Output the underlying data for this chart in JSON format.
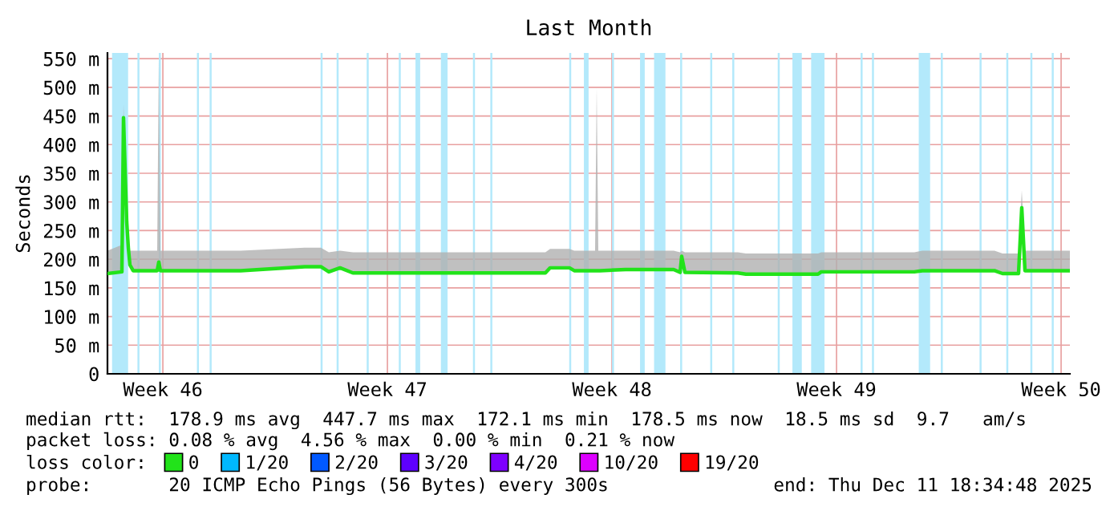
{
  "chart_data": {
    "type": "line",
    "title": "Last Month",
    "ylabel": "Seconds",
    "x": [
      "2025-11-11T18:34",
      "2025-11-12T05:22",
      "2025-11-12T06:34",
      "2025-11-12T08:58",
      "2025-11-12T10:10",
      "2025-11-12T11:22",
      "2025-11-12T13:46",
      "2025-11-13T07:46",
      "2025-11-13T08:58",
      "2025-11-13T10:10",
      "2025-11-15T22:10",
      "2025-11-17T22:10",
      "2025-11-18T10:10",
      "2025-11-18T16:10",
      "2025-11-19T00:34",
      "2025-11-19T10:10",
      "2025-11-25T10:10",
      "2025-11-25T13:46",
      "2025-11-26T04:10",
      "2025-11-26T07:46",
      "2025-11-26T23:22",
      "2025-11-27T00:34",
      "2025-11-27T01:46",
      "2025-11-27T02:58",
      "2025-11-27T22:10",
      "2025-11-29T10:10",
      "2025-11-29T14:58",
      "2025-11-29T16:10",
      "2025-11-29T18:34",
      "2025-12-01T10:10",
      "2025-12-01T16:10",
      "2025-12-03T22:10",
      "2025-12-04T00:34",
      "2025-12-06T22:10",
      "2025-12-07T04:10",
      "2025-12-09T10:10",
      "2025-12-09T16:10",
      "2025-12-10T04:10",
      "2025-12-10T06:34",
      "2025-12-10T08:58",
      "2025-12-11T18:34"
    ],
    "series": [
      {
        "name": "0",
        "color": "#22e31a",
        "values": [
          175,
          178,
          447,
          265,
          220,
          190,
          180,
          180,
          195,
          180,
          180,
          187,
          187,
          178,
          185,
          176,
          176,
          185,
          185,
          180,
          180,
          180,
          180,
          180,
          182,
          182,
          177,
          205,
          177,
          176,
          174,
          174,
          178,
          178,
          180,
          180,
          175,
          175,
          290,
          180,
          180
        ],
        "lower": [
          175,
          178,
          447,
          265,
          220,
          190,
          180,
          180,
          195,
          180,
          180,
          187,
          187,
          178,
          185,
          176,
          176,
          185,
          185,
          180,
          180,
          180,
          180,
          180,
          182,
          182,
          177,
          205,
          177,
          176,
          174,
          174,
          178,
          178,
          180,
          180,
          175,
          175,
          290,
          180,
          180
        ],
        "upper": [
          215,
          225,
          470,
          280,
          235,
          215,
          215,
          215,
          550,
          215,
          215,
          220,
          220,
          212,
          215,
          212,
          212,
          218,
          218,
          215,
          215,
          500,
          215,
          215,
          215,
          215,
          212,
          215,
          212,
          212,
          210,
          210,
          212,
          212,
          215,
          215,
          210,
          210,
          320,
          215,
          215
        ]
      },
      {
        "name": "1/20",
        "color": "#00b8ff",
        "values": [
          null,
          null,
          null,
          null,
          null,
          null,
          null,
          null,
          null,
          null,
          null,
          null,
          null,
          null,
          null,
          null,
          null,
          null,
          null,
          null,
          null,
          null,
          null,
          null,
          null,
          null,
          null,
          null,
          null,
          null,
          null,
          null,
          null,
          null,
          null,
          null,
          null,
          null,
          null,
          null,
          null
        ]
      },
      {
        "name": "2/20",
        "color": "#0059ff",
        "values": [
          null,
          null,
          null,
          null,
          null,
          null,
          null,
          null,
          null,
          null,
          null,
          null,
          null,
          null,
          null,
          null,
          null,
          null,
          null,
          null,
          null,
          null,
          null,
          null,
          null,
          null,
          null,
          null,
          null,
          null,
          null,
          null,
          null,
          null,
          null,
          null,
          null,
          null,
          null,
          null,
          null
        ]
      },
      {
        "name": "3/20",
        "color": "#5e00ff",
        "values": [
          null,
          null,
          null,
          null,
          null,
          null,
          null,
          null,
          null,
          null,
          null,
          null,
          null,
          null,
          null,
          null,
          null,
          null,
          null,
          null,
          null,
          null,
          null,
          null,
          null,
          null,
          null,
          null,
          null,
          null,
          null,
          null,
          null,
          null,
          null,
          null,
          null,
          null,
          null,
          null,
          null
        ]
      },
      {
        "name": "4/20",
        "color": "#7e00ff",
        "values": [
          null,
          null,
          null,
          null,
          null,
          null,
          null,
          null,
          null,
          null,
          null,
          null,
          null,
          null,
          null,
          null,
          null,
          null,
          null,
          null,
          null,
          null,
          null,
          null,
          null,
          null,
          null,
          null,
          null,
          null,
          null,
          null,
          null,
          null,
          null,
          null,
          null,
          null,
          null,
          null,
          null
        ]
      },
      {
        "name": "10/20",
        "color": "#dd00ff",
        "values": [
          null,
          null,
          null,
          null,
          null,
          null,
          null,
          null,
          null,
          null,
          null,
          null,
          null,
          null,
          null,
          null,
          null,
          null,
          null,
          null,
          null,
          null,
          null,
          null,
          null,
          null,
          null,
          null,
          null,
          null,
          null,
          null,
          null,
          null,
          null,
          null,
          null,
          null,
          null,
          null,
          null
        ]
      },
      {
        "name": "19/20",
        "color": "#ff0000",
        "values": [
          null,
          null,
          null,
          null,
          null,
          null,
          null,
          null,
          null,
          null,
          null,
          null,
          null,
          null,
          null,
          null,
          null,
          null,
          null,
          null,
          null,
          null,
          null,
          null,
          null,
          null,
          null,
          null,
          null,
          null,
          null,
          null,
          null,
          null,
          null,
          null,
          null,
          null,
          null,
          null,
          null
        ]
      }
    ],
    "xlim": [
      "2025-11-11T18:34",
      "2025-12-11T18:34"
    ],
    "xticks": [
      {
        "value": "2025-11-13T12:00",
        "label": "Week 46"
      },
      {
        "value": "2025-11-20T12:00",
        "label": "Week 47"
      },
      {
        "value": "2025-11-27T12:00",
        "label": "Week 48"
      },
      {
        "value": "2025-12-04T12:00",
        "label": "Week 49"
      },
      {
        "value": "2025-12-11T12:00",
        "label": "Week 50"
      }
    ],
    "ylim": [
      0,
      560
    ],
    "yticks": [
      0,
      {
        "value": 50,
        "label": "50 m"
      },
      {
        "value": 100,
        "label": "100 m"
      },
      {
        "value": 150,
        "label": "150 m"
      },
      {
        "value": 200,
        "label": "200 m"
      },
      {
        "value": 250,
        "label": "250 m"
      },
      {
        "value": 300,
        "label": "300 m"
      },
      {
        "value": 350,
        "label": "350 m"
      },
      {
        "value": 400,
        "label": "400 m"
      },
      {
        "value": 450,
        "label": "450 m"
      },
      {
        "value": 500,
        "label": "500 m"
      },
      {
        "value": 550,
        "label": "550 m"
      }
    ],
    "bands": [
      {
        "axis": "x",
        "from": "2025-11-11T22:00",
        "to": "2025-11-12T10:00",
        "color": "#b3e9fb"
      },
      {
        "axis": "x",
        "from": "2025-11-12T17:00",
        "to": "2025-11-12T18:30",
        "color": "#b3e9fb"
      },
      {
        "axis": "x",
        "from": "2025-11-13T09:00",
        "to": "2025-11-13T10:30",
        "color": "#b3e9fb"
      },
      {
        "axis": "x",
        "from": "2025-11-14T13:30",
        "to": "2025-11-14T15:00",
        "color": "#b3e9fb"
      },
      {
        "axis": "x",
        "from": "2025-11-14T23:00",
        "to": "2025-11-15T00:30",
        "color": "#b3e9fb"
      },
      {
        "axis": "x",
        "from": "2025-11-18T10:00",
        "to": "2025-11-18T11:30",
        "color": "#b3e9fb"
      },
      {
        "axis": "x",
        "from": "2025-11-18T22:00",
        "to": "2025-11-18T23:30",
        "color": "#b3e9fb"
      },
      {
        "axis": "x",
        "from": "2025-11-19T20:30",
        "to": "2025-11-19T22:00",
        "color": "#b3e9fb"
      },
      {
        "axis": "x",
        "from": "2025-11-20T20:30",
        "to": "2025-11-20T22:00",
        "color": "#b3e9fb"
      },
      {
        "axis": "x",
        "from": "2025-11-21T09:00",
        "to": "2025-11-21T12:30",
        "color": "#b3e9fb"
      },
      {
        "axis": "x",
        "from": "2025-11-22T04:00",
        "to": "2025-11-22T09:00",
        "color": "#b3e9fb"
      },
      {
        "axis": "x",
        "from": "2025-11-23T04:00",
        "to": "2025-11-23T05:30",
        "color": "#b3e9fb"
      },
      {
        "axis": "x",
        "from": "2025-11-23T17:00",
        "to": "2025-11-23T18:30",
        "color": "#b3e9fb"
      },
      {
        "axis": "x",
        "from": "2025-11-26T04:00",
        "to": "2025-11-26T05:30",
        "color": "#b3e9fb"
      },
      {
        "axis": "x",
        "from": "2025-11-26T15:00",
        "to": "2025-11-26T18:30",
        "color": "#b3e9fb"
      },
      {
        "axis": "x",
        "from": "2025-11-27T12:00",
        "to": "2025-11-27T13:30",
        "color": "#b3e9fb"
      },
      {
        "axis": "x",
        "from": "2025-11-28T09:00",
        "to": "2025-11-28T12:30",
        "color": "#b3e9fb"
      },
      {
        "axis": "x",
        "from": "2025-11-28T19:30",
        "to": "2025-11-29T04:00",
        "color": "#b3e9fb"
      },
      {
        "axis": "x",
        "from": "2025-11-29T15:00",
        "to": "2025-11-29T16:30",
        "color": "#b3e9fb"
      },
      {
        "axis": "x",
        "from": "2025-11-30T13:30",
        "to": "2025-11-30T15:00",
        "color": "#b3e9fb"
      },
      {
        "axis": "x",
        "from": "2025-12-01T06:00",
        "to": "2025-12-01T07:30",
        "color": "#b3e9fb"
      },
      {
        "axis": "x",
        "from": "2025-12-02T16:00",
        "to": "2025-12-02T17:30",
        "color": "#b3e9fb"
      },
      {
        "axis": "x",
        "from": "2025-12-03T03:00",
        "to": "2025-12-03T10:00",
        "color": "#b3e9fb"
      },
      {
        "axis": "x",
        "from": "2025-12-03T17:00",
        "to": "2025-12-04T03:00",
        "color": "#b3e9fb"
      },
      {
        "axis": "x",
        "from": "2025-12-05T06:00",
        "to": "2025-12-05T07:30",
        "color": "#b3e9fb"
      },
      {
        "axis": "x",
        "from": "2025-12-05T14:30",
        "to": "2025-12-05T16:00",
        "color": "#b3e9fb"
      },
      {
        "axis": "x",
        "from": "2025-12-07T01:30",
        "to": "2025-12-07T10:00",
        "color": "#b3e9fb"
      },
      {
        "axis": "x",
        "from": "2025-12-07T18:00",
        "to": "2025-12-07T19:30",
        "color": "#b3e9fb"
      },
      {
        "axis": "x",
        "from": "2025-12-08T23:00",
        "to": "2025-12-09T00:30",
        "color": "#b3e9fb"
      },
      {
        "axis": "x",
        "from": "2025-12-09T19:00",
        "to": "2025-12-09T20:30",
        "color": "#b3e9fb"
      },
      {
        "axis": "x",
        "from": "2025-12-10T13:00",
        "to": "2025-12-10T14:30",
        "color": "#b3e9fb"
      },
      {
        "axis": "x",
        "from": "2025-12-11T05:00",
        "to": "2025-12-11T06:30",
        "color": "#b3e9fb"
      }
    ],
    "grid": true,
    "legend": "bottom",
    "annotations": [
      "median rtt:  178.9 ms avg  447.7 ms max  172.1 ms min  178.5 ms now  18.5 ms sd  9.7   am/s",
      "packet loss: 0.08 % avg  4.56 % max  0.00 % min  0.21 % now",
      "loss color:",
      "probe:       20 ICMP Echo Pings (56 Bytes) every 300s",
      "end: Thu Dec 11 18:34:48 2025"
    ]
  }
}
